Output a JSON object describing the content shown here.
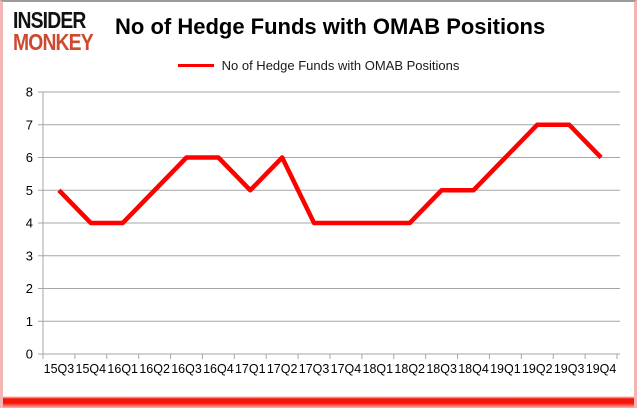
{
  "logo": {
    "line1": "INSIDER",
    "line2": "MONKEY",
    "monkey_color": "#cd4a2e"
  },
  "title": "No of Hedge Funds with OMAB Positions",
  "legend": {
    "label": "No of Hedge Funds with OMAB Positions",
    "line_color": "#ff0000"
  },
  "chart_data": {
    "type": "line",
    "title": "No of Hedge Funds with OMAB Positions",
    "categories": [
      "15Q3",
      "15Q4",
      "16Q1",
      "16Q2",
      "16Q3",
      "16Q4",
      "17Q1",
      "17Q2",
      "17Q3",
      "17Q4",
      "18Q1",
      "18Q2",
      "18Q3",
      "18Q4",
      "19Q1",
      "19Q2",
      "19Q3",
      "19Q4"
    ],
    "series": [
      {
        "name": "No of Hedge Funds with OMAB Positions",
        "values": [
          5,
          4,
          4,
          5,
          6,
          6,
          5,
          6,
          4,
          4,
          4,
          4,
          5,
          5,
          6,
          7,
          7,
          6
        ],
        "color": "#ff0000"
      }
    ],
    "xlabel": "",
    "ylabel": "",
    "ylim": [
      0,
      8
    ],
    "y_ticks": [
      0,
      1,
      2,
      3,
      4,
      5,
      6,
      7,
      8
    ],
    "grid": true,
    "legend_position": "top",
    "grid_color": "#a6a6a6",
    "tick_label_color": "#000000"
  },
  "frame": {
    "bottom_bar_color": "#f3170a"
  }
}
